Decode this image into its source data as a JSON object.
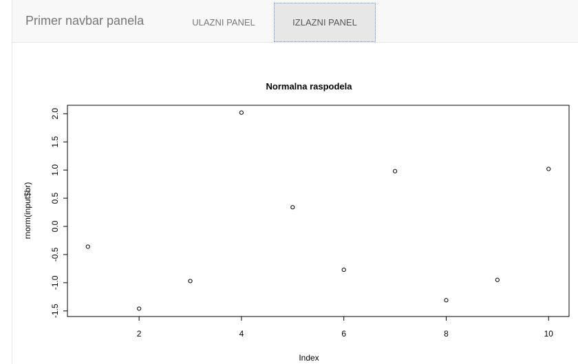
{
  "navbar": {
    "brand": "Primer navbar panela",
    "tabs": [
      {
        "label": "ULAZNI PANEL",
        "active": false
      },
      {
        "label": "IZLAZNI PANEL",
        "active": true
      }
    ],
    "colors": {
      "background": "#f8f8f8",
      "active_tab": "#e7e7e7",
      "text": "#777777"
    }
  },
  "chart_data": {
    "type": "scatter",
    "title": "Normalna raspodela",
    "xlabel": "Index",
    "ylabel": "rnorm(input$br)",
    "x": [
      1,
      2,
      3,
      4,
      5,
      6,
      7,
      8,
      9,
      10
    ],
    "y": [
      -0.36,
      -1.46,
      -0.97,
      2.02,
      0.34,
      -0.77,
      0.98,
      -1.31,
      -0.95,
      1.02
    ],
    "xlim": [
      0.6,
      10.4
    ],
    "ylim": [
      -1.6,
      2.15
    ],
    "xticks": [
      2,
      4,
      6,
      8,
      10
    ],
    "xtick_labels": [
      "2",
      "4",
      "6",
      "8",
      "10"
    ],
    "yticks": [
      -1.5,
      -1.0,
      -0.5,
      0.0,
      0.5,
      1.0,
      1.5,
      2.0
    ],
    "ytick_labels": [
      "-1.5",
      "-1.0",
      "-0.5",
      "0.0",
      "0.5",
      "1.0",
      "1.5",
      "2.0"
    ],
    "grid": false,
    "legend": "none",
    "marker": "open-circle"
  }
}
